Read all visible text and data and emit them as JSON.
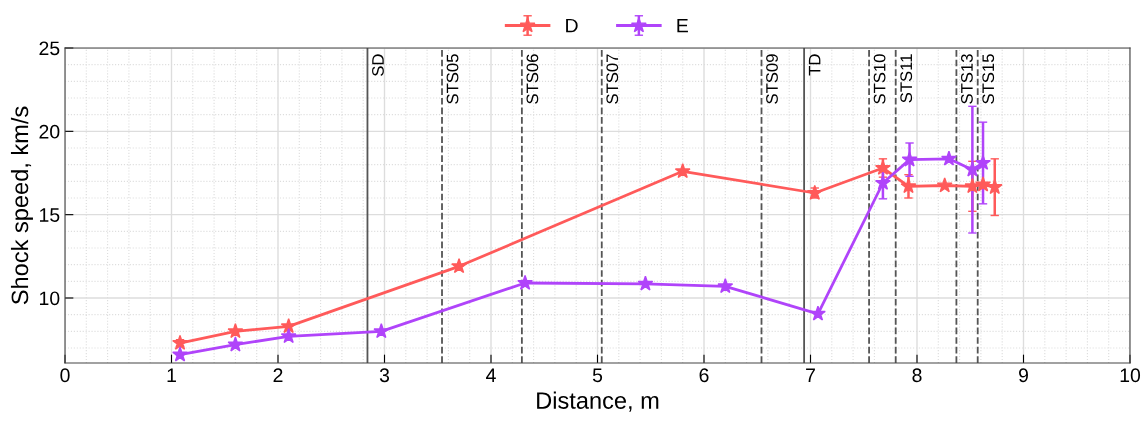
{
  "chart_data": {
    "type": "line",
    "xlabel": "Distance, m",
    "ylabel": "Shock speed, km/s",
    "xlim": [
      0,
      10
    ],
    "xticks": [
      0,
      1,
      2,
      3,
      4,
      5,
      6,
      7,
      8,
      9,
      10
    ],
    "ylim": [
      6.1,
      25
    ],
    "yticks": [
      10,
      15,
      20,
      25
    ],
    "grid": true,
    "legend": "top",
    "marker": "star",
    "line_style": "solid",
    "series": [
      {
        "name": "D",
        "color": "#ff5a5a",
        "x": [
          1.08,
          1.6,
          2.1,
          3.7,
          5.8,
          7.04,
          7.68,
          7.92,
          8.26,
          8.52,
          8.62,
          8.73
        ],
        "values": [
          7.3,
          8.0,
          8.3,
          11.9,
          17.6,
          16.3,
          17.8,
          16.7,
          16.75,
          16.7,
          16.8,
          16.65
        ],
        "errors": [
          0.2,
          null,
          null,
          null,
          null,
          0.3,
          0.55,
          0.7,
          null,
          1.5,
          null,
          1.7
        ]
      },
      {
        "name": "E",
        "color": "#b044fa",
        "x": [
          1.08,
          1.6,
          2.1,
          2.97,
          4.32,
          5.45,
          6.2,
          7.07,
          7.68,
          7.93,
          8.3,
          8.52,
          8.62
        ],
        "values": [
          6.6,
          7.2,
          7.7,
          8.0,
          10.9,
          10.85,
          10.7,
          9.05,
          16.9,
          18.3,
          18.35,
          17.7,
          18.1
        ],
        "errors": [
          null,
          null,
          null,
          null,
          null,
          null,
          null,
          null,
          0.95,
          1.0,
          null,
          3.8,
          2.45
        ]
      }
    ],
    "ref_lines": [
      {
        "axis": "x",
        "value": 2.84,
        "label": "SD",
        "line_style": "solid",
        "color": "#555555"
      },
      {
        "axis": "x",
        "value": 3.54,
        "label": "STS05",
        "line_style": "dashed",
        "color": "#555555"
      },
      {
        "axis": "x",
        "value": 4.29,
        "label": "STS06",
        "line_style": "dashed",
        "color": "#555555"
      },
      {
        "axis": "x",
        "value": 5.04,
        "label": "STS07",
        "line_style": "dashed",
        "color": "#555555"
      },
      {
        "axis": "x",
        "value": 6.54,
        "label": "STS09",
        "line_style": "dashed",
        "color": "#555555"
      },
      {
        "axis": "x",
        "value": 6.94,
        "label": "TD",
        "line_style": "solid",
        "color": "#555555"
      },
      {
        "axis": "x",
        "value": 7.55,
        "label": "STS10",
        "line_style": "dashed",
        "color": "#555555"
      },
      {
        "axis": "x",
        "value": 7.8,
        "label": "STS11",
        "line_style": "dashed",
        "color": "#555555"
      },
      {
        "axis": "x",
        "value": 8.37,
        "label": "STS13",
        "line_style": "dashed",
        "color": "#555555"
      },
      {
        "axis": "x",
        "value": 8.57,
        "label": "STS15",
        "line_style": "dashed",
        "color": "#555555"
      }
    ]
  }
}
